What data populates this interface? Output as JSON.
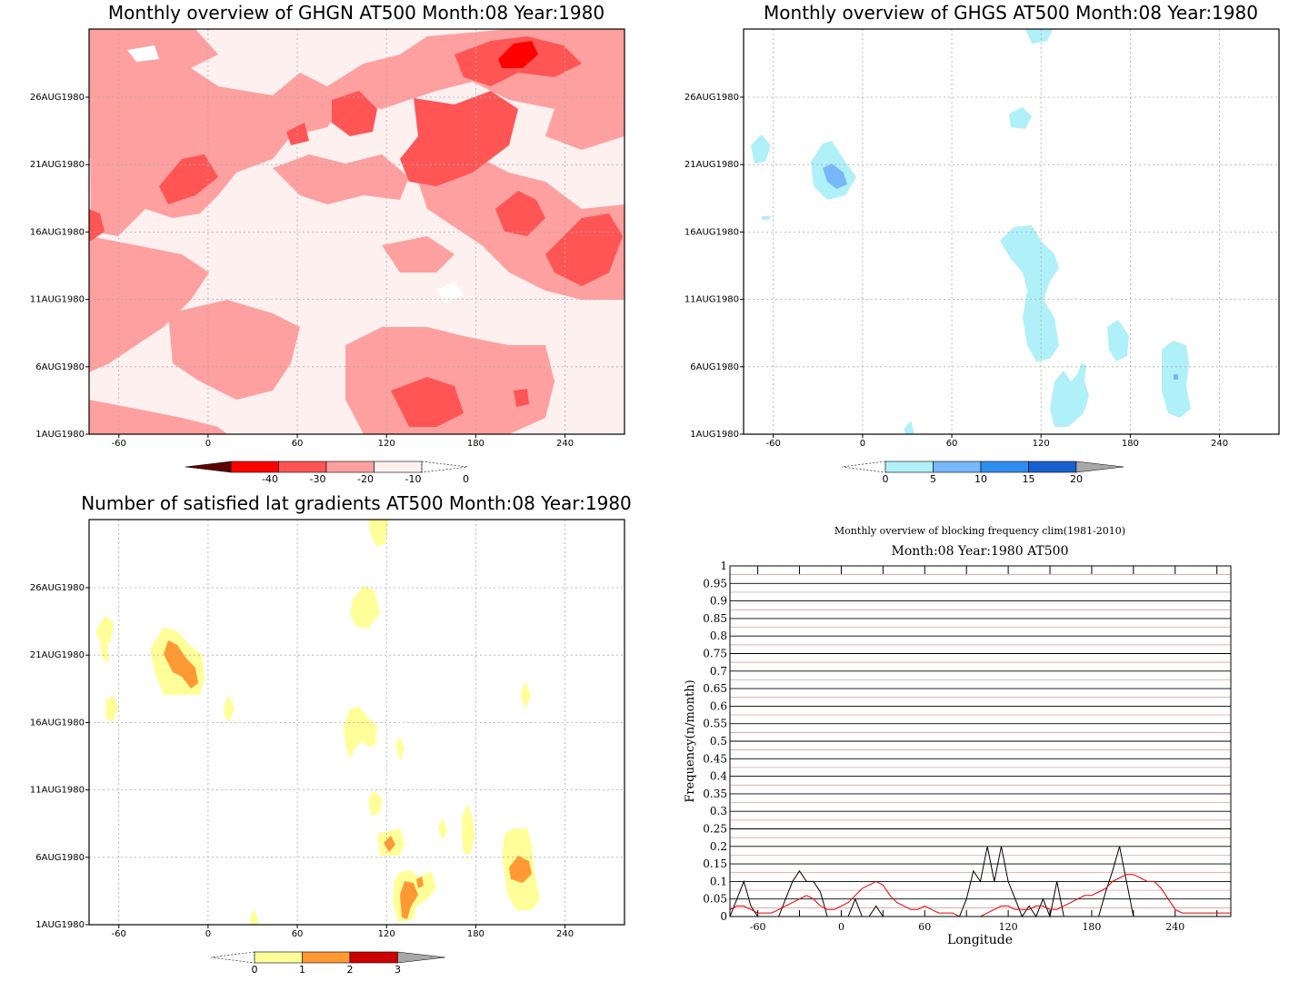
{
  "figure": {
    "panel_a": {
      "title": "Monthly overview of GHGN AT500 Month:08 Year:1980",
      "colorbar_labels": [
        "-40",
        "-30",
        "-20",
        "-10",
        "0"
      ],
      "colors": [
        "#5a0000",
        "#ff0000",
        "#ff5555",
        "#ffa0a0",
        "#fff0f0"
      ]
    },
    "panel_b": {
      "title": "Monthly overview of GHGS AT500 Month:08 Year:1980",
      "colorbar_labels": [
        "0",
        "5",
        "10",
        "15",
        "20"
      ],
      "colors": [
        "#b0f0f8",
        "#78b8f8",
        "#2f8ef0",
        "#1a5fd0",
        "#a8a8a8"
      ]
    },
    "panel_c": {
      "title": "Number of satisfied lat gradients AT500 Month:08 Year:1980",
      "colorbar_labels": [
        "0",
        "1",
        "2",
        "3"
      ],
      "colors": [
        "#ffff99",
        "#ff9933",
        "#cc0000",
        "#a8a8a8"
      ]
    },
    "map_axes": {
      "x_ticks": [
        "-60",
        "0",
        "60",
        "120",
        "180",
        "240"
      ],
      "y_ticks": [
        "1AUG1980",
        "6AUG1980",
        "11AUG1980",
        "16AUG1980",
        "21AUG1980",
        "26AUG1980"
      ]
    }
  },
  "chart_data": [
    {
      "type": "heatmap",
      "title": "Monthly overview of GHGN AT500 Month:08 Year:1980",
      "x_ticks": [
        -60,
        0,
        60,
        120,
        180,
        240
      ],
      "y_ticks": [
        "1AUG1980",
        "6AUG1980",
        "11AUG1980",
        "16AUG1980",
        "21AUG1980",
        "26AUG1980"
      ],
      "xlim": [
        -80,
        280
      ],
      "colorbar": {
        "levels": [
          -40,
          -30,
          -20,
          -10,
          0
        ]
      }
    },
    {
      "type": "heatmap",
      "title": "Monthly overview of GHGS AT500 Month:08 Year:1980",
      "x_ticks": [
        -60,
        0,
        60,
        120,
        180,
        240
      ],
      "y_ticks": [
        "1AUG1980",
        "6AUG1980",
        "11AUG1980",
        "16AUG1980",
        "21AUG1980",
        "26AUG1980"
      ],
      "xlim": [
        -80,
        280
      ],
      "colorbar": {
        "levels": [
          0,
          5,
          10,
          15,
          20
        ]
      }
    },
    {
      "type": "heatmap",
      "title": "Number of satisfied lat gradients AT500 Month:08 Year:1980",
      "x_ticks": [
        -60,
        0,
        60,
        120,
        180,
        240
      ],
      "y_ticks": [
        "1AUG1980",
        "6AUG1980",
        "11AUG1980",
        "16AUG1980",
        "21AUG1980",
        "26AUG1980"
      ],
      "xlim": [
        -80,
        280
      ],
      "colorbar": {
        "levels": [
          0,
          1,
          2,
          3
        ]
      }
    },
    {
      "type": "line",
      "title": "Monthly overview of blocking frequency clim(1981-2010)",
      "subtitle": "Month:08 Year:1980  AT500",
      "xlabel": "Longitude",
      "ylabel": "Frequency(n/month)",
      "xlim": [
        -80,
        280
      ],
      "ylim": [
        0,
        1
      ],
      "x_ticks": [
        -60,
        0,
        60,
        120,
        180,
        240
      ],
      "y_ticks": [
        "0",
        "0.05",
        "0.1",
        "0.15",
        "0.2",
        "0.25",
        "0.3",
        "0.35",
        "0.4",
        "0.45",
        "0.5",
        "0.55",
        "0.6",
        "0.65",
        "0.7",
        "0.75",
        "0.8",
        "0.85",
        "0.9",
        "0.95",
        "1"
      ],
      "grid": true,
      "series": [
        {
          "color": "#000000",
          "x": [
            -80,
            -75,
            -70,
            -65,
            -60,
            -55,
            -50,
            -45,
            -40,
            -35,
            -30,
            -25,
            -20,
            -15,
            -10,
            -5,
            0,
            5,
            10,
            15,
            20,
            25,
            30,
            35,
            40,
            45,
            50,
            55,
            60,
            65,
            70,
            75,
            80,
            85,
            90,
            95,
            100,
            105,
            110,
            115,
            120,
            125,
            130,
            135,
            140,
            145,
            150,
            155,
            160,
            165,
            170,
            175,
            180,
            185,
            190,
            195,
            200,
            205,
            210,
            215,
            220,
            225,
            230,
            235,
            240,
            245,
            250,
            255,
            260,
            265,
            270,
            275,
            280
          ],
          "y": [
            0,
            0.05,
            0.1,
            0.03,
            0,
            0,
            0,
            0,
            0.05,
            0.1,
            0.13,
            0.1,
            0.1,
            0.07,
            0,
            0,
            0,
            0,
            0.05,
            0,
            0,
            0.03,
            0,
            0,
            0,
            0,
            0,
            0,
            0,
            0,
            0,
            0,
            0,
            0,
            0.05,
            0.13,
            0.1,
            0.2,
            0.1,
            0.2,
            0.1,
            0.05,
            0,
            0.03,
            0,
            0.05,
            0,
            0.1,
            0,
            0,
            0,
            0,
            0,
            0,
            0.07,
            0.13,
            0.2,
            0.1,
            0,
            0,
            0,
            0,
            0,
            0,
            0,
            0,
            0,
            0,
            0,
            0,
            0,
            0,
            0
          ]
        },
        {
          "color": "#e00000",
          "x": [
            -80,
            -75,
            -70,
            -65,
            -60,
            -55,
            -50,
            -45,
            -40,
            -35,
            -30,
            -25,
            -20,
            -15,
            -10,
            -5,
            0,
            5,
            10,
            15,
            20,
            25,
            30,
            35,
            40,
            45,
            50,
            55,
            60,
            65,
            70,
            75,
            80,
            85,
            90,
            95,
            100,
            105,
            110,
            115,
            120,
            125,
            130,
            135,
            140,
            145,
            150,
            155,
            160,
            165,
            170,
            175,
            180,
            185,
            190,
            195,
            200,
            205,
            210,
            215,
            220,
            225,
            230,
            235,
            240,
            245,
            250,
            255,
            260,
            265,
            270,
            275,
            280
          ],
          "y": [
            0.02,
            0.03,
            0.03,
            0.02,
            0.01,
            0.01,
            0.01,
            0.02,
            0.03,
            0.04,
            0.05,
            0.06,
            0.05,
            0.03,
            0.02,
            0.02,
            0.03,
            0.04,
            0.06,
            0.08,
            0.09,
            0.1,
            0.09,
            0.06,
            0.04,
            0.03,
            0.02,
            0.02,
            0.03,
            0.02,
            0.01,
            0.01,
            0.01,
            0,
            0,
            0,
            0,
            0.01,
            0.02,
            0.03,
            0.03,
            0.02,
            0.02,
            0.02,
            0.03,
            0.03,
            0.02,
            0.02,
            0.03,
            0.04,
            0.05,
            0.06,
            0.06,
            0.07,
            0.08,
            0.1,
            0.11,
            0.12,
            0.12,
            0.11,
            0.1,
            0.1,
            0.08,
            0.05,
            0.02,
            0.01,
            0.01,
            0.01,
            0.01,
            0.01,
            0.01,
            0.01,
            0.01
          ]
        }
      ]
    }
  ]
}
